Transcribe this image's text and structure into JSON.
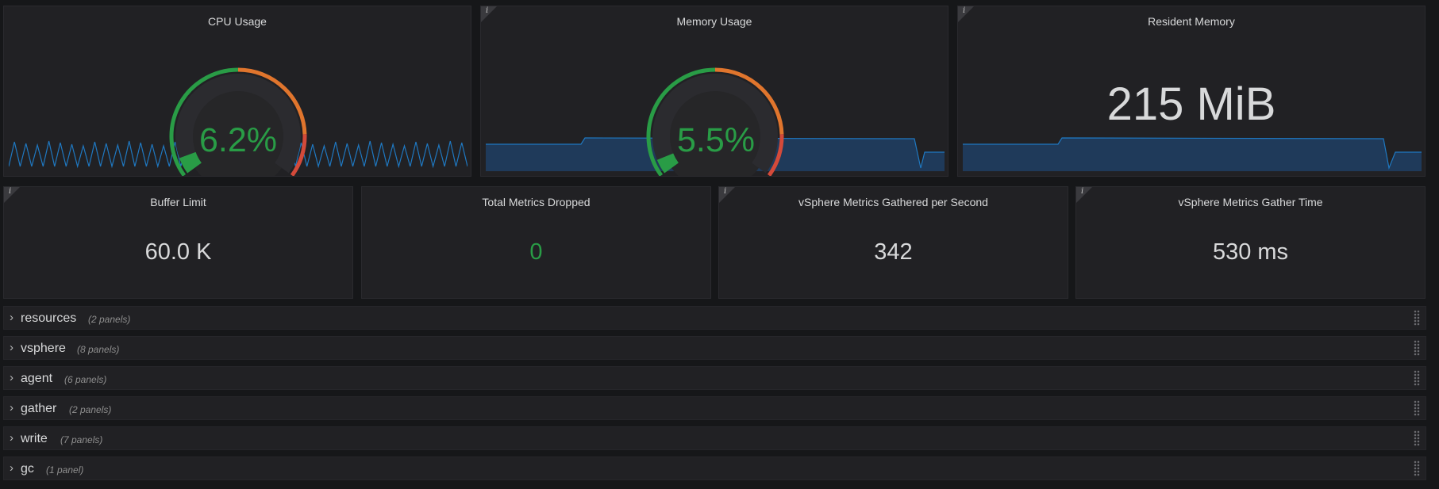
{
  "top_panels": [
    {
      "title": "CPU Usage",
      "value": "6.2%",
      "gauge_fraction": 0.062,
      "has_info": false
    },
    {
      "title": "Memory Usage",
      "value": "5.5%",
      "gauge_fraction": 0.055,
      "has_info": true
    },
    {
      "title": "Resident Memory",
      "value": "215 MiB",
      "has_info": true
    }
  ],
  "stat_panels": [
    {
      "title": "Buffer Limit",
      "value": "60.0 K",
      "value_color": "#d8d9da",
      "has_info": true
    },
    {
      "title": "Total Metrics Dropped",
      "value": "0",
      "value_color": "#299c46",
      "has_info": false
    },
    {
      "title": "vSphere Metrics Gathered per Second",
      "value": "342",
      "value_color": "#d8d9da",
      "has_info": true
    },
    {
      "title": "vSphere Metrics Gather Time",
      "value": "530 ms",
      "value_color": "#d8d9da",
      "has_info": true
    }
  ],
  "rows": [
    {
      "title": "resources",
      "count": "(2 panels)"
    },
    {
      "title": "vsphere",
      "count": "(8 panels)"
    },
    {
      "title": "agent",
      "count": "(6 panels)"
    },
    {
      "title": "gather",
      "count": "(2 panels)"
    },
    {
      "title": "write",
      "count": "(7 panels)"
    },
    {
      "title": "gc",
      "count": "(1 panel)"
    }
  ],
  "icons": {
    "info": "i",
    "chevron": "›"
  },
  "colors": {
    "green": "#299c46",
    "orange": "#e0752d",
    "red": "#d44a3a",
    "spark_line": "#1f78c1",
    "spark_fill": "#1f3a5a"
  }
}
